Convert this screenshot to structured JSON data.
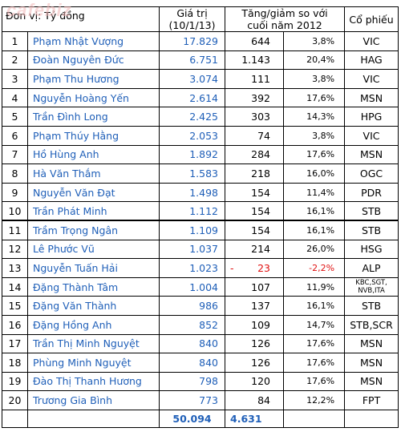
{
  "watermark": "cafebiz",
  "header": {
    "unit": "Đơn vị: Tỷ đồng",
    "value_line1": "Giá trị",
    "value_line2": "(10/1/13)",
    "change_line1": "Tăng/giảm so với",
    "change_line2": "cuối năm 2012",
    "stock": "Cổ phiếu"
  },
  "rows": [
    {
      "rank": "1",
      "name": "Phạm Nhật Vượng",
      "value": "17.829",
      "change": "644",
      "pct": "3,8%",
      "stock": "VIC"
    },
    {
      "rank": "2",
      "name": "Đoàn Nguyên Đức",
      "value": "6.751",
      "change": "1.143",
      "pct": "20,4%",
      "stock": "HAG"
    },
    {
      "rank": "3",
      "name": "Phạm Thu Hương",
      "value": "3.074",
      "change": "111",
      "pct": "3,8%",
      "stock": "VIC"
    },
    {
      "rank": "4",
      "name": "Nguyễn Hoàng Yến",
      "value": "2.614",
      "change": "392",
      "pct": "17,6%",
      "stock": "MSN"
    },
    {
      "rank": "5",
      "name": "Trần Đình Long",
      "value": "2.425",
      "change": "303",
      "pct": "14,3%",
      "stock": "HPG"
    },
    {
      "rank": "6",
      "name": "Phạm Thúy Hằng",
      "value": "2.053",
      "change": "74",
      "pct": "3,8%",
      "stock": "VIC"
    },
    {
      "rank": "7",
      "name": "Hồ Hùng Anh",
      "value": "1.892",
      "change": "284",
      "pct": "17,6%",
      "stock": "MSN"
    },
    {
      "rank": "8",
      "name": "Hà Văn Thắm",
      "value": "1.583",
      "change": "218",
      "pct": "16,0%",
      "stock": "OGC"
    },
    {
      "rank": "9",
      "name": "Nguyễn Văn Đạt",
      "value": "1.498",
      "change": "154",
      "pct": "11,4%",
      "stock": "PDR"
    },
    {
      "rank": "10",
      "name": "Trần Phát Minh",
      "value": "1.112",
      "change": "154",
      "pct": "16,1%",
      "stock": "STB"
    },
    {
      "rank": "11",
      "name": "Trầm Trọng Ngân",
      "value": "1.109",
      "change": "154",
      "pct": "16,1%",
      "stock": "STB"
    },
    {
      "rank": "12",
      "name": "Lê Phước Vũ",
      "value": "1.037",
      "change": "214",
      "pct": "26,0%",
      "stock": "HSG"
    },
    {
      "rank": "13",
      "name": "Nguyễn Tuấn Hải",
      "value": "1.023",
      "change_sign": "-",
      "change": "23",
      "pct": "-2,2%",
      "stock": "ALP"
    },
    {
      "rank": "14",
      "name": "Đặng Thành Tâm",
      "value": "1.004",
      "change": "107",
      "pct": "11,9%",
      "stock": "KBC,SGT, NVB,ITA"
    },
    {
      "rank": "15",
      "name": "Đặng Văn Thành",
      "value": "986",
      "change": "137",
      "pct": "16,1%",
      "stock": "STB"
    },
    {
      "rank": "16",
      "name": "Đặng Hồng Anh",
      "value": "852",
      "change": "109",
      "pct": "14,7%",
      "stock": "STB,SCR"
    },
    {
      "rank": "17",
      "name": "Trần Thị Minh Nguyệt",
      "value": "840",
      "change": "126",
      "pct": "17,6%",
      "stock": "MSN"
    },
    {
      "rank": "18",
      "name": "Phùng Minh Nguyệt",
      "value": "840",
      "change": "126",
      "pct": "17,6%",
      "stock": "MSN"
    },
    {
      "rank": "19",
      "name": "Đào Thị Thanh Hương",
      "value": "798",
      "change": "120",
      "pct": "17,6%",
      "stock": "MSN"
    },
    {
      "rank": "20",
      "name": "Trương Gia Bình",
      "value": "773",
      "change": "84",
      "pct": "12,2%",
      "stock": "FPT"
    }
  ],
  "totals": {
    "value": "50.094",
    "change": "4.631"
  },
  "colors": {
    "name_text": "#1f5fb8",
    "negative": "#e01010",
    "watermark": "#f2b8b8"
  }
}
